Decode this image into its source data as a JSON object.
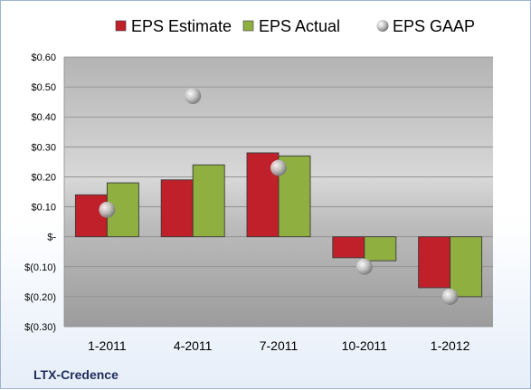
{
  "chart_data": {
    "type": "bar",
    "categories": [
      "1-2011",
      "4-2011",
      "7-2011",
      "10-2011",
      "1-2012"
    ],
    "series": [
      {
        "name": "EPS Estimate",
        "values": [
          0.14,
          0.19,
          0.28,
          -0.07,
          -0.17
        ],
        "color": "#c0202a",
        "kind": "bar"
      },
      {
        "name": "EPS Actual",
        "values": [
          0.18,
          0.24,
          0.27,
          -0.08,
          -0.2
        ],
        "color": "#8fb040",
        "kind": "bar"
      },
      {
        "name": "EPS GAAP",
        "values": [
          0.09,
          0.47,
          0.23,
          -0.1,
          -0.2
        ],
        "color": "#a9a9a9",
        "kind": "marker"
      }
    ],
    "ylim": [
      -0.3,
      0.6
    ],
    "yticks": [
      0.6,
      0.5,
      0.4,
      0.3,
      0.2,
      0.1,
      0.0,
      -0.1,
      -0.2,
      -0.3
    ],
    "ytick_labels": [
      "$0.60",
      "$0.50",
      "$0.40",
      "$0.30",
      "$0.20",
      "$0.10",
      "$-",
      "$(0.10)",
      "$(0.20)",
      "$(0.30)"
    ],
    "grid": true,
    "legend_position": "top"
  },
  "company_label": "LTX-Credence"
}
